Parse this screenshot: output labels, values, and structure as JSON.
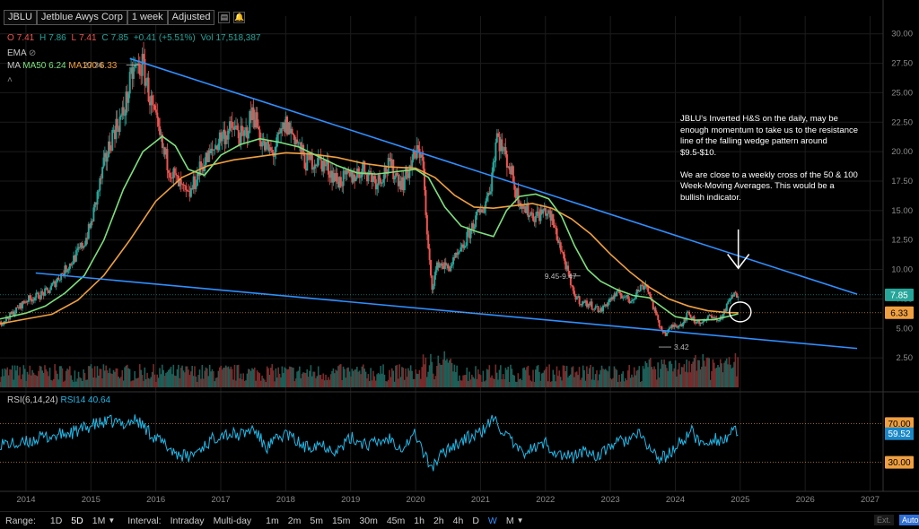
{
  "header": {
    "symbol": "JBLU",
    "name": "Jetblue Awys Corp",
    "interval": "1 week",
    "adjust": "Adjusted",
    "icon1": "bar-chart-icon",
    "icon2": "bell-icon"
  },
  "ohlc": {
    "o_label": "O",
    "o": "7.41",
    "h_label": "H",
    "h": "7.86",
    "l_label": "L",
    "l": "7.41",
    "c_label": "C",
    "c": "7.85",
    "change": "+0.41 (+5.51%)",
    "vol_label": "Vol",
    "vol": "17,518,387"
  },
  "legend": {
    "ema": "EMA",
    "ma": "MA",
    "ma50": "MA50 6.24",
    "ma100": "MA100 6.33"
  },
  "rsi_label": {
    "name": "RSI(6,14,24)",
    "value": "RSI14 40.64"
  },
  "annotation": "JBLU's Inverted H&S on the daily, may be enough momentum to take us to the resistance line of the falling wedge pattern around $9.5-$10.\n\nWe are close to a weekly cross of the 50 & 100 Week-Moving Averages. This would be  a bullish indicator.",
  "colors": {
    "bull": "#26a69a",
    "bear": "#ef5350",
    "ma50": "#7de07d",
    "ma100": "#f0a040",
    "trend": "#2f8fff",
    "rsi": "#22b8e8",
    "price_tag": "#26a69a",
    "ma_tag": "#f0a040",
    "level_tag": "#f0a040"
  },
  "chart_data": {
    "type": "candlestick",
    "y_ticks": [
      "30.00",
      "27.50",
      "25.00",
      "22.50",
      "20.00",
      "17.50",
      "15.00",
      "12.50",
      "10.00",
      "7.50",
      "5.00",
      "2.50"
    ],
    "y_ticks_num": [
      30,
      27.5,
      25,
      22.5,
      20,
      17.5,
      15,
      12.5,
      10,
      7.5,
      5,
      2.5
    ],
    "ylim": [
      0,
      31.5
    ],
    "x_ticks": [
      "2014",
      "2015",
      "2016",
      "2017",
      "2018",
      "2019",
      "2020",
      "2021",
      "2022",
      "2023",
      "2024",
      "2025",
      "2026",
      "2027"
    ],
    "x_ticks_num": [
      2014,
      2015,
      2016,
      2017,
      2018,
      2019,
      2020,
      2021,
      2022,
      2023,
      2024,
      2025,
      2026,
      2027
    ],
    "xlim": [
      2013.6,
      2027.2
    ],
    "last_price": "7.85",
    "ma100_tag": "6.33",
    "rsi_ticks": [
      "70.00",
      "30.00"
    ],
    "rsi_ticks_num": [
      70,
      30
    ],
    "rsi_tag": "59.52",
    "rsi_tag_num": 59.52,
    "rsi_ylim": [
      0,
      100
    ],
    "price_annotations": [
      {
        "x": 2015.6,
        "y": 27.36,
        "text": "27.36"
      },
      {
        "x": 2022.4,
        "y": 9.45,
        "text": "9.45-9.47"
      },
      {
        "x": 2023.8,
        "y": 3.42,
        "text": "3.42"
      }
    ],
    "price_path": [
      [
        2013.6,
        5.4
      ],
      [
        2013.8,
        6.3
      ],
      [
        2014.0,
        7.4
      ],
      [
        2014.2,
        7.8
      ],
      [
        2014.35,
        8.2
      ],
      [
        2014.5,
        9.3
      ],
      [
        2014.7,
        10.6
      ],
      [
        2014.9,
        12.3
      ],
      [
        2015.0,
        13.8
      ],
      [
        2015.1,
        16.3
      ],
      [
        2015.2,
        18.8
      ],
      [
        2015.35,
        21.8
      ],
      [
        2015.5,
        23.2
      ],
      [
        2015.65,
        26.9
      ],
      [
        2015.8,
        27.3
      ],
      [
        2015.95,
        23.5
      ],
      [
        2016.1,
        20.3
      ],
      [
        2016.2,
        18.8
      ],
      [
        2016.35,
        17.2
      ],
      [
        2016.5,
        16.1
      ],
      [
        2016.7,
        18.8
      ],
      [
        2016.85,
        19.8
      ],
      [
        2017.0,
        21.3
      ],
      [
        2017.2,
        22.0
      ],
      [
        2017.35,
        21.0
      ],
      [
        2017.5,
        23.5
      ],
      [
        2017.65,
        20.5
      ],
      [
        2017.8,
        19.8
      ],
      [
        2018.0,
        22.3
      ],
      [
        2018.15,
        21.2
      ],
      [
        2018.3,
        19.1
      ],
      [
        2018.5,
        19.3
      ],
      [
        2018.65,
        18.6
      ],
      [
        2018.8,
        17.5
      ],
      [
        2019.0,
        17.8
      ],
      [
        2019.2,
        18.6
      ],
      [
        2019.4,
        17.5
      ],
      [
        2019.6,
        18.8
      ],
      [
        2019.8,
        17.3
      ],
      [
        2020.0,
        19.8
      ],
      [
        2020.1,
        20.1
      ],
      [
        2020.18,
        12.5
      ],
      [
        2020.25,
        8.5
      ],
      [
        2020.35,
        10.6
      ],
      [
        2020.5,
        10.1
      ],
      [
        2020.7,
        11.5
      ],
      [
        2020.9,
        14.0
      ],
      [
        2021.05,
        15.3
      ],
      [
        2021.15,
        17.0
      ],
      [
        2021.25,
        21.5
      ],
      [
        2021.35,
        20.0
      ],
      [
        2021.45,
        18.8
      ],
      [
        2021.55,
        16.5
      ],
      [
        2021.7,
        15.0
      ],
      [
        2021.85,
        14.5
      ],
      [
        2022.0,
        15.0
      ],
      [
        2022.1,
        14.2
      ],
      [
        2022.2,
        12.5
      ],
      [
        2022.3,
        10.6
      ],
      [
        2022.42,
        8.0
      ],
      [
        2022.55,
        7.2
      ],
      [
        2022.7,
        7.0
      ],
      [
        2022.85,
        6.5
      ],
      [
        2023.0,
        7.5
      ],
      [
        2023.15,
        8.0
      ],
      [
        2023.3,
        7.3
      ],
      [
        2023.45,
        8.4
      ],
      [
        2023.55,
        8.8
      ],
      [
        2023.65,
        7.0
      ],
      [
        2023.75,
        5.3
      ],
      [
        2023.85,
        4.5
      ],
      [
        2023.95,
        5.2
      ],
      [
        2024.1,
        5.4
      ],
      [
        2024.2,
        6.3
      ],
      [
        2024.3,
        5.6
      ],
      [
        2024.45,
        5.5
      ],
      [
        2024.55,
        6.2
      ],
      [
        2024.65,
        5.6
      ],
      [
        2024.75,
        6.3
      ],
      [
        2024.85,
        7.6
      ],
      [
        2024.95,
        7.9
      ]
    ],
    "ma50_path": [
      [
        2013.6,
        5.8
      ],
      [
        2014.0,
        6.3
      ],
      [
        2014.3,
        6.9
      ],
      [
        2014.6,
        8.0
      ],
      [
        2014.9,
        9.5
      ],
      [
        2015.2,
        12.5
      ],
      [
        2015.5,
        16.8
      ],
      [
        2015.8,
        20.0
      ],
      [
        2016.1,
        21.3
      ],
      [
        2016.3,
        20.5
      ],
      [
        2016.5,
        18.5
      ],
      [
        2016.75,
        18.0
      ],
      [
        2017.0,
        19.7
      ],
      [
        2017.3,
        20.6
      ],
      [
        2017.6,
        21.1
      ],
      [
        2017.9,
        20.8
      ],
      [
        2018.2,
        20.4
      ],
      [
        2018.5,
        19.6
      ],
      [
        2018.8,
        18.8
      ],
      [
        2019.1,
        18.2
      ],
      [
        2019.4,
        18.1
      ],
      [
        2019.7,
        18.3
      ],
      [
        2020.0,
        18.5
      ],
      [
        2020.2,
        17.8
      ],
      [
        2020.45,
        15.3
      ],
      [
        2020.7,
        13.7
      ],
      [
        2020.95,
        13.2
      ],
      [
        2021.2,
        12.8
      ],
      [
        2021.4,
        15.0
      ],
      [
        2021.6,
        16.2
      ],
      [
        2021.85,
        16.4
      ],
      [
        2022.05,
        16.0
      ],
      [
        2022.25,
        14.5
      ],
      [
        2022.45,
        12.0
      ],
      [
        2022.65,
        10.0
      ],
      [
        2022.85,
        9.0
      ],
      [
        2023.1,
        8.3
      ],
      [
        2023.35,
        7.8
      ],
      [
        2023.6,
        7.6
      ],
      [
        2023.8,
        6.8
      ],
      [
        2024.0,
        6.0
      ],
      [
        2024.3,
        5.7
      ],
      [
        2024.6,
        5.75
      ],
      [
        2024.8,
        6.0
      ],
      [
        2024.97,
        6.24
      ]
    ],
    "ma100_path": [
      [
        2013.6,
        5.4
      ],
      [
        2014.0,
        5.8
      ],
      [
        2014.4,
        6.2
      ],
      [
        2014.8,
        7.4
      ],
      [
        2015.2,
        9.5
      ],
      [
        2015.6,
        12.5
      ],
      [
        2016.0,
        15.8
      ],
      [
        2016.4,
        17.8
      ],
      [
        2016.8,
        18.8
      ],
      [
        2017.2,
        19.3
      ],
      [
        2017.6,
        19.6
      ],
      [
        2018.0,
        19.9
      ],
      [
        2018.4,
        19.8
      ],
      [
        2018.8,
        19.5
      ],
      [
        2019.2,
        19.0
      ],
      [
        2019.6,
        18.7
      ],
      [
        2020.0,
        18.6
      ],
      [
        2020.3,
        17.8
      ],
      [
        2020.6,
        16.3
      ],
      [
        2020.9,
        15.3
      ],
      [
        2021.2,
        15.2
      ],
      [
        2021.5,
        15.4
      ],
      [
        2021.8,
        15.6
      ],
      [
        2022.1,
        15.2
      ],
      [
        2022.4,
        14.3
      ],
      [
        2022.7,
        13.0
      ],
      [
        2023.0,
        11.3
      ],
      [
        2023.3,
        9.8
      ],
      [
        2023.6,
        8.5
      ],
      [
        2023.9,
        7.5
      ],
      [
        2024.2,
        6.9
      ],
      [
        2024.5,
        6.5
      ],
      [
        2024.8,
        6.35
      ],
      [
        2024.97,
        6.33
      ]
    ],
    "trendlines": [
      {
        "x1": 2015.6,
        "y1": 27.9,
        "x2": 2026.8,
        "y2": 7.9
      },
      {
        "x1": 2014.15,
        "y1": 9.7,
        "x2": 2026.8,
        "y2": 3.3
      }
    ],
    "rsi_path": [
      [
        2013.6,
        50
      ],
      [
        2013.9,
        48
      ],
      [
        2014.2,
        55
      ],
      [
        2014.5,
        58
      ],
      [
        2014.8,
        62
      ],
      [
        2015.0,
        68
      ],
      [
        2015.3,
        72
      ],
      [
        2015.5,
        70
      ],
      [
        2015.7,
        74
      ],
      [
        2016.0,
        55
      ],
      [
        2016.3,
        40
      ],
      [
        2016.5,
        35
      ],
      [
        2016.8,
        50
      ],
      [
        2017.0,
        60
      ],
      [
        2017.3,
        58
      ],
      [
        2017.5,
        65
      ],
      [
        2017.7,
        45
      ],
      [
        2018.0,
        60
      ],
      [
        2018.3,
        45
      ],
      [
        2018.5,
        50
      ],
      [
        2018.8,
        42
      ],
      [
        2019.0,
        55
      ],
      [
        2019.3,
        48
      ],
      [
        2019.6,
        55
      ],
      [
        2019.8,
        45
      ],
      [
        2020.0,
        60
      ],
      [
        2020.15,
        35
      ],
      [
        2020.25,
        25
      ],
      [
        2020.5,
        45
      ],
      [
        2020.8,
        55
      ],
      [
        2021.0,
        60
      ],
      [
        2021.2,
        75
      ],
      [
        2021.35,
        62
      ],
      [
        2021.6,
        40
      ],
      [
        2021.85,
        45
      ],
      [
        2022.0,
        50
      ],
      [
        2022.2,
        38
      ],
      [
        2022.4,
        35
      ],
      [
        2022.6,
        42
      ],
      [
        2022.85,
        36
      ],
      [
        2023.0,
        48
      ],
      [
        2023.2,
        52
      ],
      [
        2023.45,
        58
      ],
      [
        2023.6,
        45
      ],
      [
        2023.75,
        33
      ],
      [
        2023.9,
        38
      ],
      [
        2024.1,
        52
      ],
      [
        2024.25,
        62
      ],
      [
        2024.4,
        48
      ],
      [
        2024.6,
        55
      ],
      [
        2024.75,
        52
      ],
      [
        2024.85,
        62
      ],
      [
        2024.97,
        59.52
      ]
    ]
  },
  "bottom": {
    "range_label": "Range:",
    "r1": "1D",
    "r2": "5D",
    "r3": "1M",
    "interval_label": "Interval:",
    "i1": "Intraday",
    "i2": "Multi-day",
    "i3": "1m",
    "i4": "2m",
    "i5": "5m",
    "i6": "15m",
    "i7": "30m",
    "i8": "45m",
    "i9": "1h",
    "i10": "2h",
    "i11": "4h",
    "i12": "D",
    "i13": "W",
    "i14": "M",
    "ext": "Ext.",
    "auto": "Auto"
  }
}
